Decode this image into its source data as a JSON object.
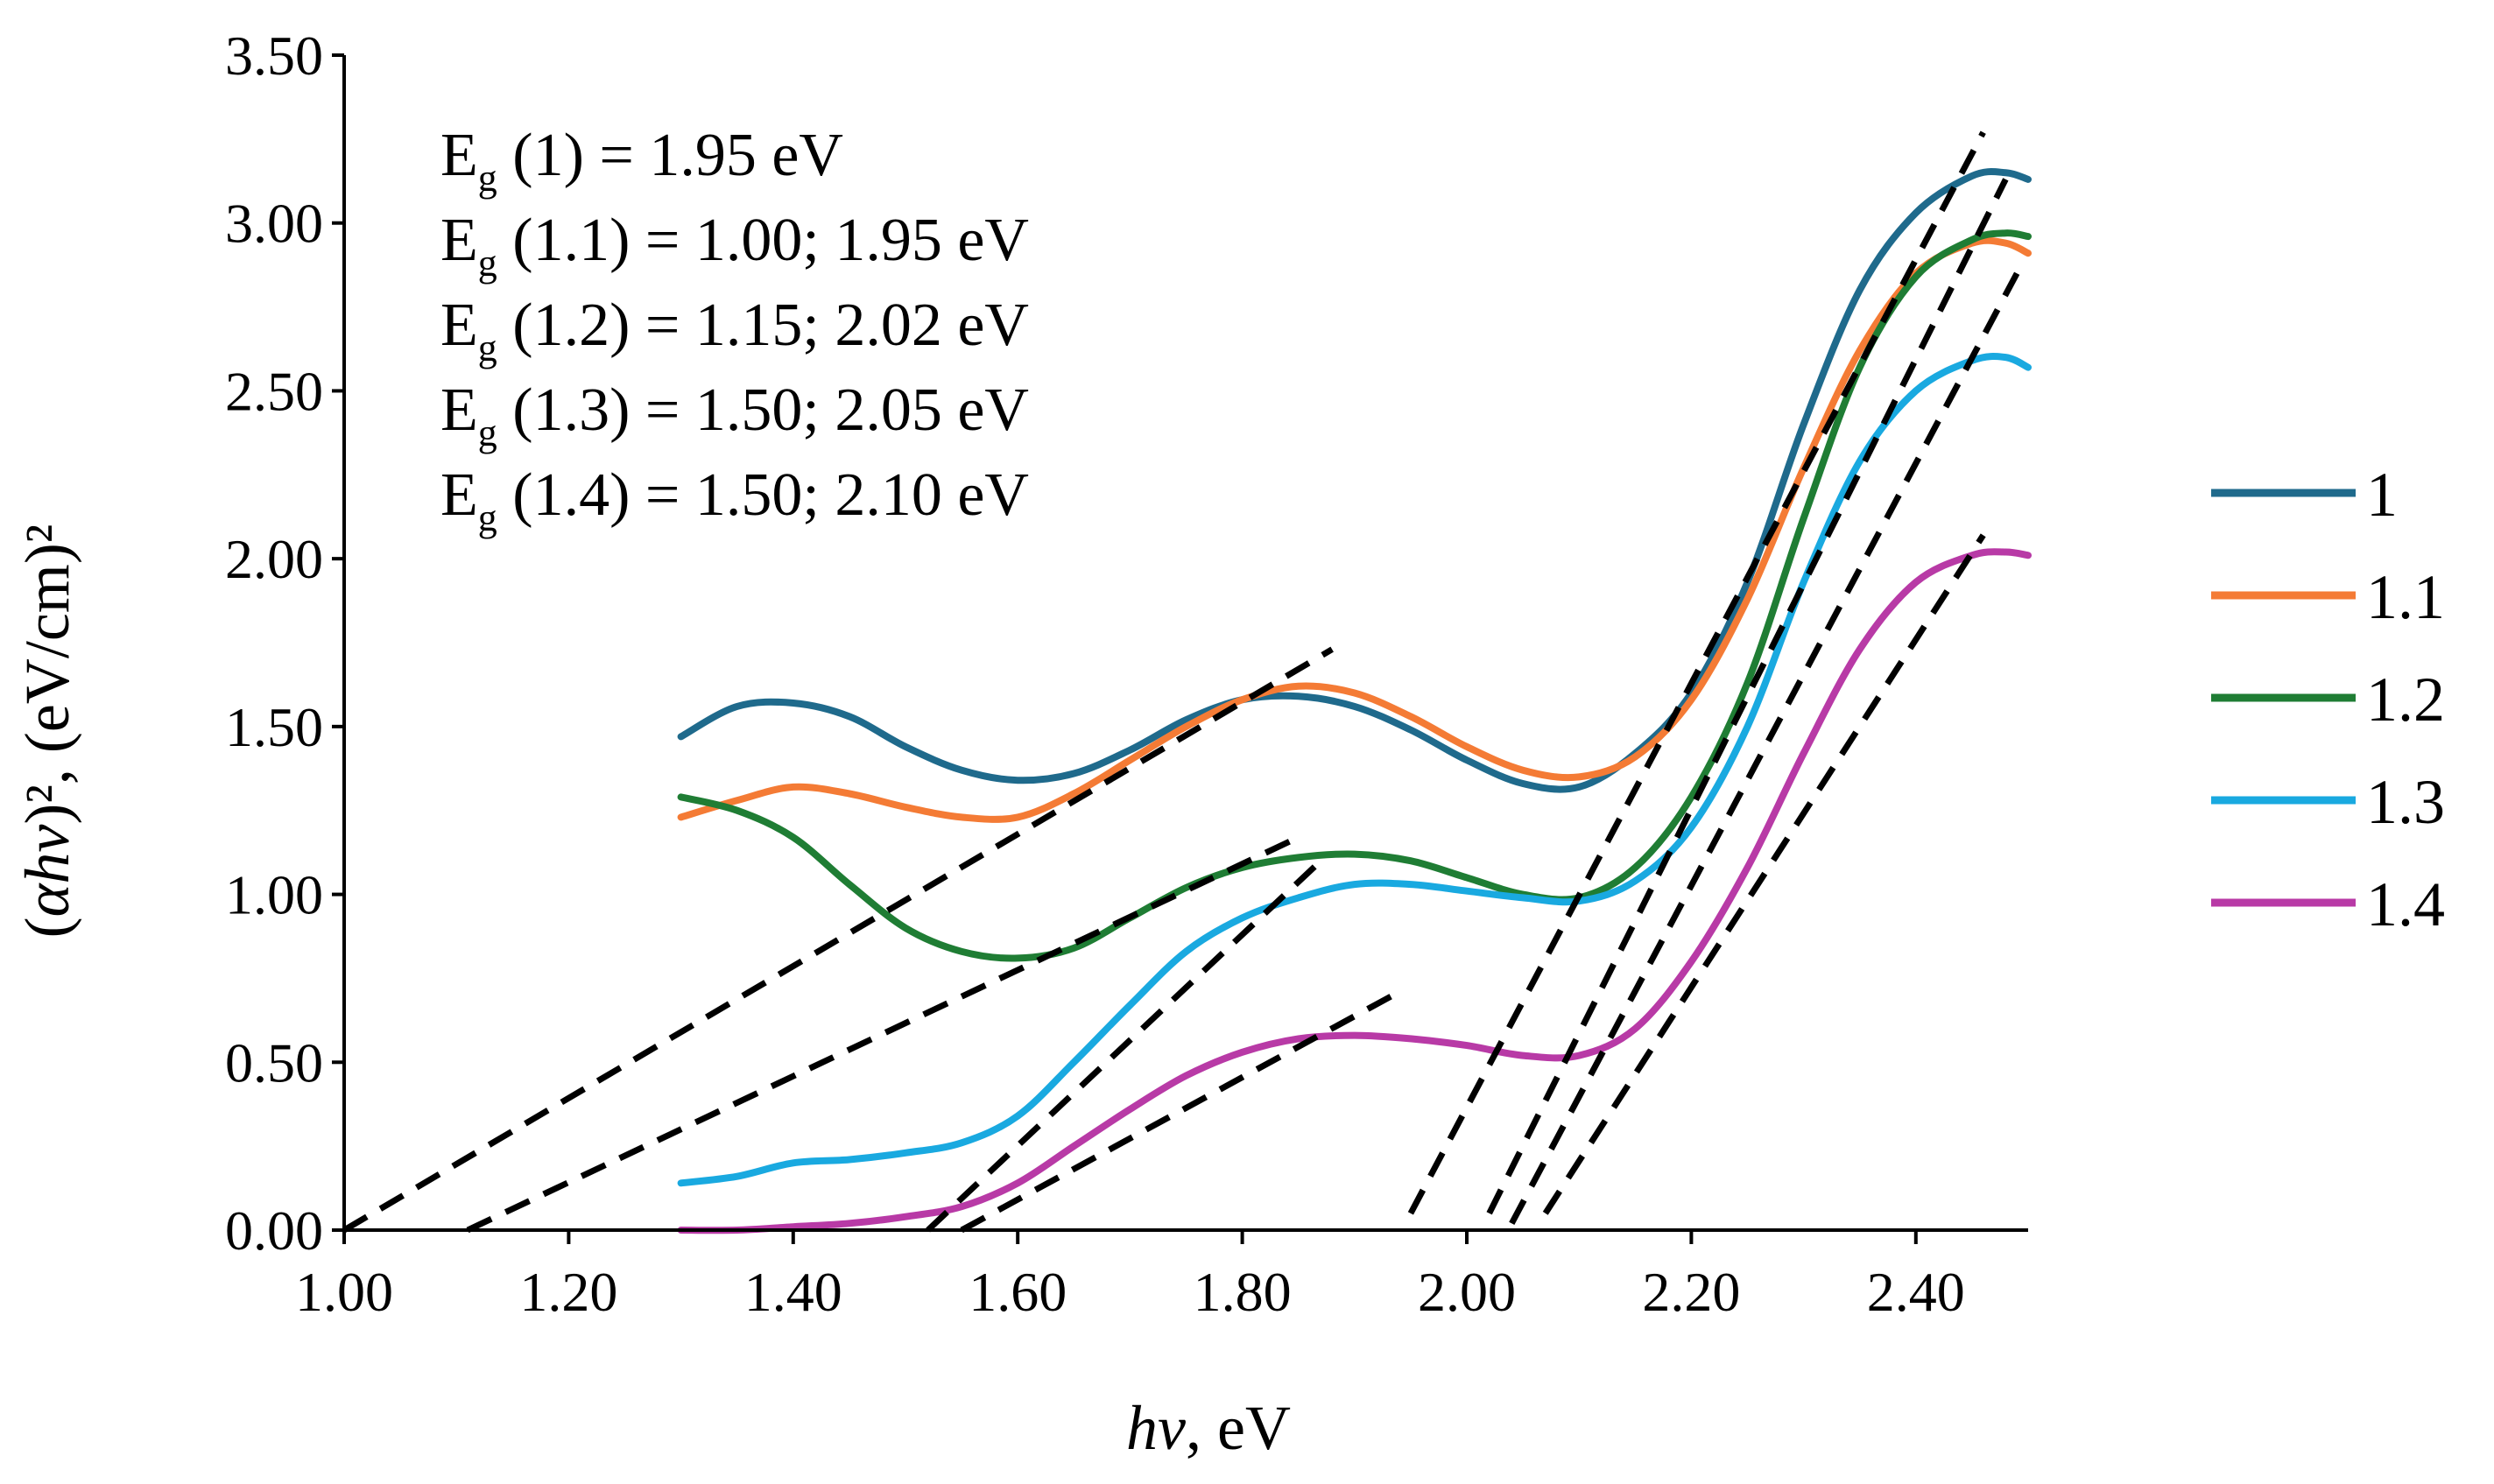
{
  "chart_data": {
    "type": "line",
    "title": "",
    "xlabel": {
      "italic": "hv",
      "text": ", eV"
    },
    "ylabel": {
      "prefix": "(",
      "italic": "αhv",
      "middle": ")², (eV/cm)²"
    },
    "xlim": [
      1.0,
      2.5
    ],
    "ylim": [
      0.0,
      3.5
    ],
    "x_ticks": [
      "1.00",
      "1.20",
      "1.40",
      "1.60",
      "1.80",
      "2.00",
      "2.20",
      "2.40"
    ],
    "y_ticks": [
      "0.00",
      "0.50",
      "1.00",
      "1.50",
      "2.00",
      "2.50",
      "3.00",
      "3.50"
    ],
    "grid": false,
    "legend_position": "right",
    "annotations": [
      {
        "prefix": "E",
        "sub": "g",
        "text": " (1) = 1.95 eV"
      },
      {
        "prefix": "E",
        "sub": "g",
        "text": " (1.1) = 1.00; 1.95 eV"
      },
      {
        "prefix": "E",
        "sub": "g",
        "text": " (1.2) = 1.15; 2.02 eV"
      },
      {
        "prefix": "E",
        "sub": "g",
        "text": " (1.3) = 1.50; 2.05 eV"
      },
      {
        "prefix": "E",
        "sub": "g",
        "text": " (1.4) = 1.50; 2.10 eV"
      }
    ],
    "series": [
      {
        "name": "1",
        "color": "#1f6a8c",
        "x": [
          1.3,
          1.35,
          1.4,
          1.45,
          1.5,
          1.55,
          1.6,
          1.65,
          1.7,
          1.75,
          1.8,
          1.85,
          1.9,
          1.95,
          2.0,
          2.05,
          2.1,
          2.15,
          2.2,
          2.25,
          2.3,
          2.35,
          2.4,
          2.45,
          2.48,
          2.5
        ],
        "y": [
          1.47,
          1.56,
          1.57,
          1.53,
          1.44,
          1.37,
          1.34,
          1.36,
          1.43,
          1.52,
          1.58,
          1.59,
          1.56,
          1.49,
          1.4,
          1.33,
          1.32,
          1.42,
          1.6,
          1.93,
          2.4,
          2.8,
          3.03,
          3.14,
          3.15,
          3.13
        ]
      },
      {
        "name": "1.1",
        "color": "#f47b35",
        "x": [
          1.3,
          1.35,
          1.4,
          1.45,
          1.5,
          1.55,
          1.6,
          1.65,
          1.7,
          1.75,
          1.8,
          1.85,
          1.9,
          1.95,
          2.0,
          2.05,
          2.1,
          2.15,
          2.2,
          2.25,
          2.3,
          2.35,
          2.4,
          2.45,
          2.48,
          2.5
        ],
        "y": [
          1.23,
          1.28,
          1.32,
          1.3,
          1.26,
          1.23,
          1.23,
          1.3,
          1.4,
          1.5,
          1.58,
          1.62,
          1.6,
          1.53,
          1.44,
          1.37,
          1.35,
          1.41,
          1.58,
          1.88,
          2.27,
          2.62,
          2.85,
          2.94,
          2.94,
          2.91
        ]
      },
      {
        "name": "1.2",
        "color": "#1f7d34",
        "x": [
          1.3,
          1.35,
          1.4,
          1.45,
          1.5,
          1.55,
          1.6,
          1.65,
          1.7,
          1.75,
          1.8,
          1.85,
          1.9,
          1.95,
          2.0,
          2.05,
          2.1,
          2.15,
          2.2,
          2.25,
          2.3,
          2.35,
          2.4,
          2.45,
          2.48,
          2.5
        ],
        "y": [
          1.29,
          1.25,
          1.17,
          1.03,
          0.9,
          0.83,
          0.81,
          0.84,
          0.93,
          1.02,
          1.08,
          1.11,
          1.12,
          1.1,
          1.05,
          1.0,
          0.99,
          1.08,
          1.29,
          1.63,
          2.12,
          2.57,
          2.84,
          2.95,
          2.97,
          2.96
        ]
      },
      {
        "name": "1.3",
        "color": "#19a9e0",
        "x": [
          1.3,
          1.35,
          1.4,
          1.45,
          1.5,
          1.55,
          1.6,
          1.65,
          1.7,
          1.75,
          1.8,
          1.85,
          1.9,
          1.95,
          2.0,
          2.05,
          2.1,
          2.15,
          2.2,
          2.25,
          2.3,
          2.35,
          2.4,
          2.45,
          2.48,
          2.5
        ],
        "y": [
          0.14,
          0.16,
          0.2,
          0.21,
          0.23,
          0.26,
          0.34,
          0.5,
          0.67,
          0.83,
          0.93,
          0.99,
          1.03,
          1.03,
          1.01,
          0.99,
          0.98,
          1.04,
          1.2,
          1.5,
          1.93,
          2.29,
          2.5,
          2.59,
          2.6,
          2.57
        ]
      },
      {
        "name": "1.4",
        "color": "#b83aa6",
        "x": [
          1.3,
          1.35,
          1.4,
          1.45,
          1.5,
          1.55,
          1.6,
          1.65,
          1.7,
          1.75,
          1.8,
          1.85,
          1.9,
          1.95,
          2.0,
          2.05,
          2.1,
          2.15,
          2.2,
          2.25,
          2.3,
          2.35,
          2.4,
          2.45,
          2.48,
          2.5
        ],
        "y": [
          0.0,
          0.0,
          0.01,
          0.02,
          0.04,
          0.07,
          0.14,
          0.25,
          0.36,
          0.46,
          0.53,
          0.57,
          0.58,
          0.57,
          0.55,
          0.52,
          0.52,
          0.6,
          0.8,
          1.08,
          1.42,
          1.73,
          1.93,
          2.01,
          2.02,
          2.01
        ]
      }
    ],
    "fit_lines": [
      {
        "x": [
          1.0,
          1.88
        ],
        "y": [
          0.0,
          1.73
        ]
      },
      {
        "x": [
          1.11,
          1.85
        ],
        "y": [
          0.0,
          1.17
        ]
      },
      {
        "x": [
          1.52,
          1.87
        ],
        "y": [
          0.0,
          1.1
        ]
      },
      {
        "x": [
          1.55,
          1.94
        ],
        "y": [
          0.0,
          0.71
        ]
      },
      {
        "x": [
          1.95,
          2.46
        ],
        "y": [
          0.05,
          3.27
        ]
      },
      {
        "x": [
          2.02,
          2.48
        ],
        "y": [
          0.05,
          3.13
        ]
      },
      {
        "x": [
          2.04,
          2.49
        ],
        "y": [
          0.02,
          2.85
        ]
      },
      {
        "x": [
          2.07,
          2.46
        ],
        "y": [
          0.05,
          2.07
        ]
      }
    ]
  }
}
